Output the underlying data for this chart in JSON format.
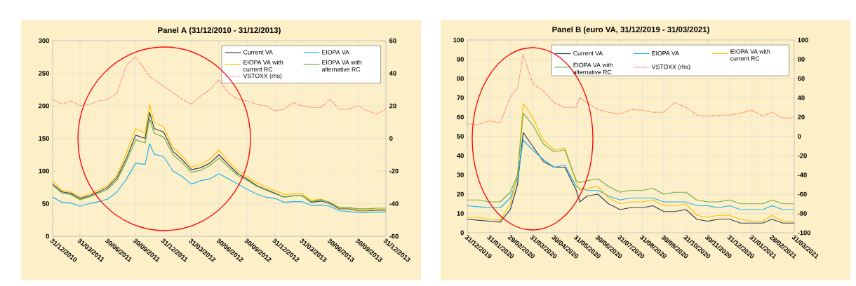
{
  "chart_data": [
    {
      "type": "line",
      "title": "Panel A (31/12/2010 - 31/12/2013)",
      "grid": true,
      "legend": "top right",
      "x": [
        "2010-12-31",
        "2011-01-31",
        "2011-02-28",
        "2011-03-31",
        "2011-04-30",
        "2011-05-31",
        "2011-06-30",
        "2011-07-31",
        "2011-08-31",
        "2011-09-30",
        "2011-10-31",
        "2011-11-15",
        "2011-11-30",
        "2011-12-31",
        "2012-01-31",
        "2012-02-29",
        "2012-03-31",
        "2012-04-30",
        "2012-05-31",
        "2012-06-30",
        "2012-07-31",
        "2012-08-31",
        "2012-09-30",
        "2012-10-31",
        "2012-11-30",
        "2012-12-31",
        "2013-01-31",
        "2013-02-28",
        "2013-03-31",
        "2013-04-30",
        "2013-05-31",
        "2013-06-30",
        "2013-07-31",
        "2013-08-31",
        "2013-09-30",
        "2013-10-31",
        "2013-11-30",
        "2013-12-31"
      ],
      "xlim": [
        "2010-12-31",
        "2013-12-31"
      ],
      "xticks": [
        {
          "value": "2010-12-31",
          "label": "31/12/2010"
        },
        {
          "value": "2011-03-31",
          "label": "31/03/2011"
        },
        {
          "value": "2011-06-30",
          "label": "30/06/2011"
        },
        {
          "value": "2011-09-30",
          "label": "30/09/2011"
        },
        {
          "value": "2011-12-31",
          "label": "31/12/2011"
        },
        {
          "value": "2012-03-31",
          "label": "31/03/2012"
        },
        {
          "value": "2012-06-30",
          "label": "30/06/2012"
        },
        {
          "value": "2012-09-30",
          "label": "30/09/2012"
        },
        {
          "value": "2012-12-31",
          "label": "31/12/2012"
        },
        {
          "value": "2013-03-31",
          "label": "31/03/2013"
        },
        {
          "value": "2013-06-30",
          "label": "30/06/2013"
        },
        {
          "value": "2013-09-30",
          "label": "30/09/2013"
        },
        {
          "value": "2013-12-31",
          "label": "31/12/2013"
        }
      ],
      "ylim": [
        0,
        300
      ],
      "yticks": [
        0,
        50,
        100,
        150,
        200,
        250,
        300
      ],
      "y2lim": [
        -60,
        60
      ],
      "y2ticks": [
        -60,
        -40,
        -20,
        0,
        20,
        40,
        60
      ],
      "series": [
        {
          "name": "Current VA",
          "color": "#333f50",
          "values": [
            80,
            68,
            66,
            58,
            62,
            68,
            75,
            90,
            120,
            155,
            150,
            190,
            165,
            160,
            130,
            118,
            102,
            105,
            112,
            125,
            110,
            96,
            88,
            78,
            72,
            66,
            60,
            62,
            62,
            52,
            54,
            50,
            42,
            42,
            39,
            39,
            40,
            40
          ]
        },
        {
          "name": "EIOPA VA",
          "color": "#1fb0f0",
          "values": [
            60,
            52,
            51,
            46,
            50,
            53,
            57,
            68,
            88,
            112,
            110,
            142,
            126,
            122,
            100,
            92,
            80,
            85,
            88,
            96,
            88,
            80,
            72,
            65,
            60,
            58,
            52,
            53,
            53,
            47,
            48,
            46,
            39,
            38,
            36,
            36,
            37,
            37
          ]
        },
        {
          "name": "EIOPA VA with current RC",
          "color": "#ffc000",
          "values": [
            85,
            70,
            68,
            60,
            65,
            71,
            78,
            94,
            128,
            165,
            158,
            202,
            175,
            168,
            136,
            124,
            106,
            110,
            118,
            132,
            115,
            100,
            92,
            82,
            76,
            70,
            64,
            65,
            65,
            55,
            57,
            52,
            43,
            43,
            40,
            40,
            41,
            41
          ]
        },
        {
          "name": "EIOPA VA with alternative RC",
          "color": "#70ad47",
          "values": [
            78,
            66,
            64,
            56,
            60,
            66,
            72,
            86,
            115,
            148,
            143,
            180,
            158,
            152,
            125,
            113,
            98,
            101,
            108,
            120,
            106,
            93,
            86,
            77,
            71,
            65,
            60,
            62,
            62,
            53,
            56,
            52,
            44,
            44,
            42,
            42,
            43,
            43
          ]
        },
        {
          "name": "VSTOXX (rhs)",
          "color": "#ff5a5a",
          "axis": "y2",
          "line_style": "dotted",
          "values": [
            24,
            21,
            23,
            20,
            21,
            23,
            24,
            28,
            45,
            50,
            42,
            38,
            36,
            32,
            28,
            24,
            21,
            26,
            30,
            36,
            28,
            24,
            23,
            21,
            20,
            17,
            18,
            22,
            20,
            19,
            19,
            24,
            18,
            18,
            20,
            17,
            15,
            18
          ]
        }
      ]
    },
    {
      "type": "line",
      "title": "Panel B (euro VA, 31/12/2019 - 31/03/2021)",
      "grid": true,
      "legend": "top right",
      "x": [
        "2019-12-31",
        "2020-01-15",
        "2020-01-31",
        "2020-02-15",
        "2020-02-29",
        "2020-03-10",
        "2020-03-18",
        "2020-03-31",
        "2020-04-15",
        "2020-04-30",
        "2020-05-15",
        "2020-05-31",
        "2020-06-05",
        "2020-06-15",
        "2020-06-30",
        "2020-07-15",
        "2020-07-31",
        "2020-08-15",
        "2020-08-31",
        "2020-09-15",
        "2020-09-30",
        "2020-10-15",
        "2020-10-31",
        "2020-11-15",
        "2020-11-30",
        "2020-12-15",
        "2020-12-31",
        "2021-01-15",
        "2021-01-31",
        "2021-02-15",
        "2021-02-28",
        "2021-03-15",
        "2021-03-31"
      ],
      "xlim": [
        "2019-12-31",
        "2021-03-31"
      ],
      "xticks": [
        {
          "value": "2019-12-31",
          "label": "31/12/2019"
        },
        {
          "value": "2020-01-31",
          "label": "31/01/2020"
        },
        {
          "value": "2020-02-29",
          "label": "29/02/2020"
        },
        {
          "value": "2020-03-31",
          "label": "31/03/2020"
        },
        {
          "value": "2020-04-30",
          "label": "30/04/2020"
        },
        {
          "value": "2020-05-31",
          "label": "31/05/2020"
        },
        {
          "value": "2020-06-30",
          "label": "30/06/2020"
        },
        {
          "value": "2020-07-31",
          "label": "31/07/2020"
        },
        {
          "value": "2020-08-31",
          "label": "31/08/2020"
        },
        {
          "value": "2020-09-30",
          "label": "30/09/2020"
        },
        {
          "value": "2020-10-31",
          "label": "31/10/2020"
        },
        {
          "value": "2020-11-30",
          "label": "30/11/2020"
        },
        {
          "value": "2020-12-31",
          "label": "31/12/2020"
        },
        {
          "value": "2021-01-31",
          "label": "31/01/2021"
        },
        {
          "value": "2021-02-28",
          "label": "28/02/2021"
        },
        {
          "value": "2021-03-31",
          "label": "31/03/2021"
        }
      ],
      "ylim": [
        0,
        100
      ],
      "yticks": [
        0,
        10,
        20,
        30,
        40,
        50,
        60,
        70,
        80,
        90,
        100
      ],
      "y2lim": [
        -100,
        100
      ],
      "y2ticks": [
        -100,
        -80,
        -60,
        -40,
        -20,
        0,
        20,
        40,
        60,
        80,
        100
      ],
      "series": [
        {
          "name": "Current VA",
          "color": "#333f50",
          "values": [
            7,
            6.5,
            6,
            5.5,
            12,
            25,
            52,
            45,
            37,
            34,
            34,
            22,
            16,
            19,
            20,
            15,
            12,
            13,
            13,
            14,
            11,
            11,
            12,
            7,
            6,
            7,
            7,
            5,
            5,
            5,
            7,
            5,
            5
          ]
        },
        {
          "name": "EIOPA VA",
          "color": "#1fb0f0",
          "values": [
            14,
            13.5,
            13,
            13,
            18,
            28,
            48,
            43,
            38,
            34,
            35,
            24,
            23,
            22,
            22,
            19,
            17,
            18,
            18,
            18,
            16,
            16,
            16,
            14,
            14,
            13,
            14,
            12,
            12,
            12,
            14,
            12,
            12
          ]
        },
        {
          "name": "EIOPA VA with current RC",
          "color": "#ffc000",
          "values": [
            8,
            8,
            7,
            6.5,
            15,
            30,
            67,
            60,
            48,
            43,
            44,
            26,
            22,
            23,
            24,
            18,
            15,
            16,
            16,
            17,
            14,
            14,
            15,
            9,
            8,
            9,
            9,
            7,
            6,
            6,
            9,
            6,
            6
          ]
        },
        {
          "name": "EIOPA VA with alternative RC",
          "color": "#70ad47",
          "values": [
            17,
            17,
            16,
            16,
            21,
            30,
            62,
            56,
            46,
            42,
            43,
            27,
            26,
            27,
            28,
            24,
            21,
            22,
            22,
            23,
            20,
            21,
            21,
            17,
            16,
            16,
            17,
            15,
            15,
            15,
            17,
            15,
            15
          ]
        },
        {
          "name": "VSTOXX (rhs)",
          "color": "#ff5a5a",
          "axis": "y2",
          "line_style": "dotted",
          "values": [
            13,
            12,
            16,
            14,
            41,
            50,
            85,
            55,
            47,
            35,
            30,
            30,
            40,
            35,
            28,
            25,
            23,
            28,
            27,
            25,
            25,
            35,
            30,
            22,
            21,
            22,
            22,
            24,
            27,
            21,
            25,
            19,
            19
          ]
        }
      ]
    }
  ]
}
